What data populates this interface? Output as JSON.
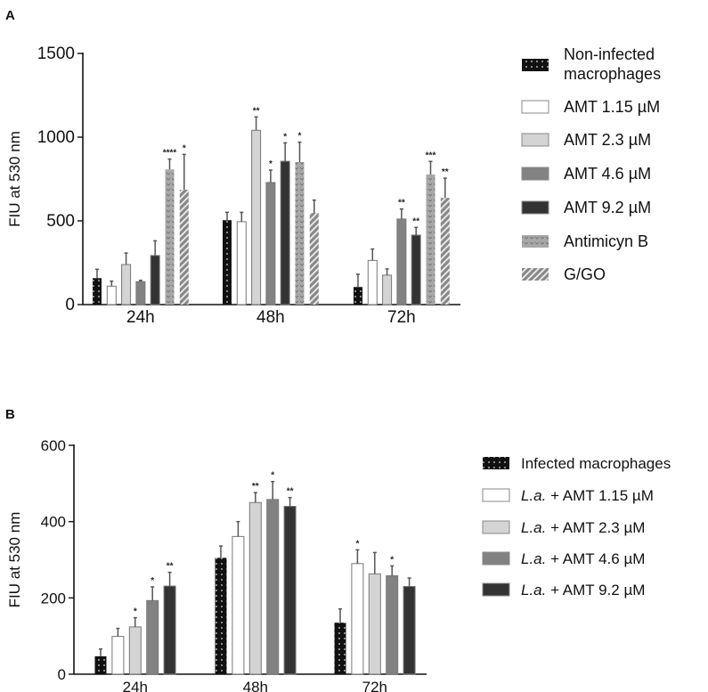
{
  "chart_data": [
    {
      "panel": "A",
      "type": "bar",
      "title": "",
      "xlabel": "",
      "ylabel": "FIU at 530 nm",
      "ylim": [
        0,
        1500
      ],
      "yticks": [
        0,
        500,
        1000,
        1500
      ],
      "categories": [
        "24h",
        "48h",
        "72h"
      ],
      "legend_position": "right",
      "series": [
        {
          "name": "Non-infected macrophages",
          "name_lines": [
            "Non-infected",
            "macrophages"
          ],
          "color": "#111111",
          "pattern": "dots",
          "values": [
            158,
            504,
            105
          ],
          "errors": [
            53,
            47,
            76
          ],
          "stars": [
            "",
            "",
            ""
          ]
        },
        {
          "name": "AMT 1.15 µM",
          "color": "#ffffff",
          "pattern": "solid",
          "values": [
            110,
            495,
            264
          ],
          "errors": [
            30,
            56,
            68
          ],
          "stars": [
            "",
            "",
            ""
          ]
        },
        {
          "name": "AMT 2.3 µM",
          "color": "#d4d4d4",
          "pattern": "solid",
          "values": [
            239,
            1041,
            176
          ],
          "errors": [
            69,
            80,
            37
          ],
          "stars": [
            "",
            "**",
            ""
          ]
        },
        {
          "name": "AMT 4.6 µM",
          "color": "#828282",
          "pattern": "solid",
          "values": [
            137,
            729,
            511
          ],
          "errors": [
            8,
            74,
            60
          ],
          "stars": [
            "",
            "*",
            "**"
          ]
        },
        {
          "name": "AMT 9.2 µM",
          "color": "#333333",
          "pattern": "solid",
          "values": [
            293,
            856,
            415
          ],
          "errors": [
            88,
            110,
            46
          ],
          "stars": [
            "",
            "*",
            "**"
          ]
        },
        {
          "name": "Antimicyn B",
          "color": "#a8a8a8",
          "pattern": "squiggle",
          "values": [
            807,
            851,
            777
          ],
          "errors": [
            62,
            119,
            78
          ],
          "stars": [
            "****",
            "*",
            "***"
          ]
        },
        {
          "name": "G/GO",
          "color": "#888888",
          "pattern": "hatch",
          "values": [
            686,
            548,
            637
          ],
          "errors": [
            211,
            76,
            118
          ],
          "stars": [
            "*",
            "",
            "**"
          ]
        }
      ]
    },
    {
      "panel": "B",
      "type": "bar",
      "title": "",
      "xlabel": "",
      "ylabel": "FIU at 530 nm",
      "ylim": [
        0,
        600
      ],
      "yticks": [
        0,
        200,
        400,
        600
      ],
      "categories": [
        "24h",
        "48h",
        "72h"
      ],
      "legend_position": "right",
      "series": [
        {
          "name": "Infected macrophages",
          "color": "#111111",
          "pattern": "dots",
          "values": [
            47,
            305,
            135
          ],
          "errors": [
            19,
            31,
            36
          ],
          "stars": [
            "",
            "",
            ""
          ]
        },
        {
          "name": "L.a. + AMT 1.15 µM",
          "color": "#ffffff",
          "pattern": "solid",
          "values": [
            99,
            361,
            290
          ],
          "errors": [
            21,
            39,
            36
          ],
          "stars": [
            "",
            "",
            "*"
          ]
        },
        {
          "name": "L.a. + AMT 2.3 µM",
          "color": "#d4d4d4",
          "pattern": "solid",
          "values": [
            124,
            450,
            263
          ],
          "errors": [
            24,
            26,
            56
          ],
          "stars": [
            "*",
            "**",
            ""
          ]
        },
        {
          "name": "L.a. + AMT 4.6 µM",
          "color": "#828282",
          "pattern": "solid",
          "values": [
            193,
            458,
            258
          ],
          "errors": [
            36,
            47,
            26
          ],
          "stars": [
            "*",
            "*",
            "*"
          ]
        },
        {
          "name": "L.a. + AMT 9.2 µM",
          "color": "#333333",
          "pattern": "solid",
          "values": [
            231,
            440,
            230
          ],
          "errors": [
            36,
            23,
            22
          ],
          "stars": [
            "**",
            "**",
            ""
          ]
        }
      ]
    }
  ]
}
